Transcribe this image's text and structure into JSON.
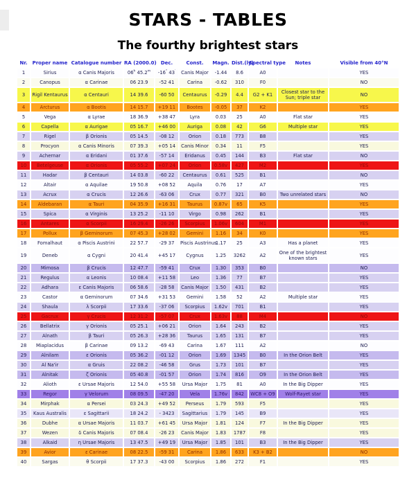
{
  "title": "STARS - TABLES",
  "subtitle": "The fourthy brightest stars",
  "palette": {
    "header_text": "#2626cc",
    "text": "#1b1b4d",
    "text_red": "#8b0a0a",
    "text_orange": "#8b2a00",
    "text_purple": "#2d1566",
    "row_white": "#fdfdff",
    "row_lavender": "#d7d1f1",
    "row_lavender_deep": "#c5baee",
    "row_lavender_light": "#e9e6f8",
    "row_cream": "#f9f9de",
    "row_cream_pale": "#fbfbee",
    "row_yellow": "#f7f74b",
    "row_orange": "#ffa41f",
    "row_red": "#ee1515",
    "row_purple": "#a080e8"
  },
  "table": {
    "columns": [
      "Nr.",
      "Proper name",
      "Catalogue number",
      "RA (2000.0)",
      "Dec.",
      "Const.",
      "Magn.",
      "Dist.(ly)",
      "Spectral type",
      "Notes",
      "Visible from 40°N"
    ],
    "rows": [
      {
        "nr": "1",
        "name": "Sirius",
        "cat": "α Canis Majoris",
        "ra": "06 45.2",
        "ra_sup": [
          "h",
          "m"
        ],
        "dec": "-16 43",
        "dec_sup": [
          "°",
          "′"
        ],
        "const": "Canis Major",
        "magn": "-1.44",
        "dist": "8.6",
        "spec": "A0",
        "notes": "",
        "visible": "YES",
        "bg": "row_white",
        "fg": "text"
      },
      {
        "nr": "2",
        "name": "Canopus",
        "cat": "α Carinae",
        "ra": "06 23.9",
        "dec": "-52 41",
        "const": "Carina",
        "magn": "-0.62",
        "dist": "310",
        "spec": "F0",
        "notes": "",
        "visible": "NO",
        "bg": "row_cream_pale",
        "fg": "text"
      },
      {
        "nr": "3",
        "name": "Rigil Kentaurus",
        "cat": "α Centauri",
        "ra": "14 39.6",
        "dec": "-60 50",
        "const": "Centaurus",
        "magn": "-0.29",
        "dist": "4.4",
        "spec": "G2 + K1",
        "notes": "Closest star to the Sun; triple star",
        "visible": "NO",
        "bg": "row_yellow",
        "fg": "text"
      },
      {
        "nr": "4",
        "name": "Arcturus",
        "cat": "α Bootis",
        "ra": "14 15.7",
        "dec": "+19 11",
        "const": "Bootes",
        "magn": "-0.05",
        "dist": "37",
        "spec": "K2",
        "notes": "",
        "visible": "YES",
        "bg": "row_orange",
        "fg": "text_orange"
      },
      {
        "nr": "5",
        "name": "Vega",
        "cat": "α Lyrae",
        "ra": "18 36.9",
        "dec": "+38 47",
        "const": "Lyra",
        "magn": "0.03",
        "dist": "25",
        "spec": "A0",
        "notes": "Flat star",
        "visible": "YES",
        "bg": "row_white",
        "fg": "text"
      },
      {
        "nr": "6",
        "name": "Capella",
        "cat": "α Aurigae",
        "ra": "05 16.7",
        "dec": "+46 00",
        "const": "Auriga",
        "magn": "0.08",
        "dist": "42",
        "spec": "G6",
        "notes": "Multiple star",
        "visible": "YES",
        "bg": "row_yellow",
        "fg": "text"
      },
      {
        "nr": "7",
        "name": "Rigel",
        "cat": "β Orionis",
        "ra": "05 14.5",
        "dec": "-08 12",
        "const": "Orion",
        "magn": "0.18",
        "dist": "773",
        "spec": "B8",
        "notes": "",
        "visible": "YES",
        "bg": "row_lavender",
        "fg": "text"
      },
      {
        "nr": "8",
        "name": "Procyon",
        "cat": "α Canis Minoris",
        "ra": "07 39.3",
        "dec": "+05 14",
        "const": "Canis Minor",
        "magn": "0.34",
        "dist": "11",
        "spec": "F5",
        "notes": "",
        "visible": "YES",
        "bg": "row_cream",
        "fg": "text"
      },
      {
        "nr": "9",
        "name": "Achernar",
        "cat": "α Eridani",
        "ra": "01 37.6",
        "dec": "-57 14",
        "const": "Eridanus",
        "magn": "0.45",
        "dist": "144",
        "spec": "B3",
        "notes": "Flat star",
        "visible": "NO",
        "bg": "row_lavender",
        "fg": "text"
      },
      {
        "nr": "10",
        "name": "Betelgeuse",
        "cat": "α Orionis",
        "ra": "05 55.2",
        "dec": "+07 24",
        "const": "Orion",
        "magn": "0.58v",
        "dist": "427",
        "spec": "M2",
        "notes": "",
        "visible": "YES",
        "bg": "row_red",
        "fg": "text_red"
      },
      {
        "nr": "11",
        "name": "Hadar",
        "cat": "β Centauri",
        "ra": "14 03.8",
        "dec": "-60 22",
        "const": "Centaurus",
        "magn": "0.61",
        "dist": "525",
        "spec": "B1",
        "notes": "",
        "visible": "NO",
        "bg": "row_lavender",
        "fg": "text"
      },
      {
        "nr": "12",
        "name": "Altair",
        "cat": "α Aquilae",
        "ra": "19 50.8",
        "dec": "+08 52",
        "const": "Aquila",
        "magn": "0.76",
        "dist": "17",
        "spec": "A7",
        "notes": "",
        "visible": "YES",
        "bg": "row_white",
        "fg": "text"
      },
      {
        "nr": "13",
        "name": "Acrux",
        "cat": "α Crucis",
        "ra": "12 26.6",
        "dec": "-63 06",
        "const": "Crux",
        "magn": "0.77",
        "dist": "321",
        "spec": "B0",
        "notes": "Two unrelated stars",
        "visible": "NO",
        "bg": "row_lavender",
        "fg": "text"
      },
      {
        "nr": "14",
        "name": "Aldebaran",
        "cat": "α Tauri",
        "ra": "04 35.9",
        "dec": "+16 31",
        "const": "Taurus",
        "magn": "0.87v",
        "dist": "65",
        "spec": "K5",
        "notes": "",
        "visible": "YES",
        "bg": "row_orange",
        "fg": "text_orange"
      },
      {
        "nr": "15",
        "name": "Spica",
        "cat": "α Virginis",
        "ra": "13 25.2",
        "dec": "-11 10",
        "const": "Virgo",
        "magn": "0.98",
        "dist": "262",
        "spec": "B1",
        "notes": "",
        "visible": "YES",
        "bg": "row_lavender",
        "fg": "text"
      },
      {
        "nr": "16",
        "name": "Antares",
        "cat": "α Scorpii",
        "ra": "16 29.4",
        "dec": "-26 26",
        "const": "Scorpius",
        "magn": "1.06v",
        "dist": "604",
        "spec": "M1",
        "notes": "",
        "visible": "YES",
        "bg": "row_red",
        "fg": "text_red"
      },
      {
        "nr": "17",
        "name": "Pollux",
        "cat": "β Geminorum",
        "ra": "07 45.3",
        "dec": "+28 02",
        "const": "Gemini",
        "magn": "1.16",
        "dist": "34",
        "spec": "K0",
        "notes": "",
        "visible": "YES",
        "bg": "row_orange",
        "fg": "text_orange"
      },
      {
        "nr": "18",
        "name": "Fomalhaut",
        "cat": "α Piscis Austrini",
        "ra": "22 57.7",
        "dec": "-29 37",
        "const": "Piscis Austrinus",
        "magn": "1.17",
        "dist": "25",
        "spec": "A3",
        "notes": "Has a planet",
        "visible": "YES",
        "bg": "row_white",
        "fg": "text"
      },
      {
        "nr": "19",
        "name": "Deneb",
        "cat": "α Cygni",
        "ra": "20 41.4",
        "dec": "+45 17",
        "const": "Cygnus",
        "magn": "1.25",
        "dist": "3262",
        "spec": "A2",
        "notes": "One of the brightest known stars",
        "visible": "YES",
        "bg": "row_white",
        "fg": "text"
      },
      {
        "nr": "20",
        "name": "Mimosa",
        "cat": "β Crucis",
        "ra": "12 47.7",
        "dec": "-59 41",
        "const": "Crux",
        "magn": "1.30",
        "dist": "353",
        "spec": "B0",
        "notes": "",
        "visible": "NO",
        "bg": "row_lavender_deep",
        "fg": "text"
      },
      {
        "nr": "21",
        "name": "Regulus",
        "cat": "α Leonis",
        "ra": "10 08.4",
        "dec": "+11 58",
        "const": "Leo",
        "magn": "1.36",
        "dist": "77",
        "spec": "B7",
        "notes": "",
        "visible": "YES",
        "bg": "row_lavender",
        "fg": "text"
      },
      {
        "nr": "22",
        "name": "Adhara",
        "cat": "ε Canis Majoris",
        "ra": "06 58.6",
        "dec": "-28 58",
        "const": "Canis Major",
        "magn": "1.50",
        "dist": "431",
        "spec": "B2",
        "notes": "",
        "visible": "YES",
        "bg": "row_lavender",
        "fg": "text"
      },
      {
        "nr": "23",
        "name": "Castor",
        "cat": "α Geminorum",
        "ra": "07 34.6",
        "dec": "+31 53",
        "const": "Gemini",
        "magn": "1.58",
        "dist": "52",
        "spec": "A2",
        "notes": "Multiple star",
        "visible": "YES",
        "bg": "row_white",
        "fg": "text"
      },
      {
        "nr": "24",
        "name": "Shaula",
        "cat": "λ Scorpii",
        "ra": "17 33.6",
        "dec": "-37 06",
        "const": "Scorpius",
        "magn": "1.62v",
        "dist": "701",
        "spec": "B1",
        "notes": "",
        "visible": "YES",
        "bg": "row_lavender",
        "fg": "text"
      },
      {
        "nr": "25",
        "name": "Gacrux",
        "cat": "γ Crucis",
        "ra": "12 31.2",
        "dec": "-57 07",
        "const": "Crux",
        "magn": "1.63v",
        "dist": "88",
        "spec": "M4",
        "notes": "",
        "visible": "NO",
        "bg": "row_red",
        "fg": "text_red"
      },
      {
        "nr": "26",
        "name": "Bellatrix",
        "cat": "γ Orionis",
        "ra": "05 25.1",
        "dec": "+06 21",
        "const": "Orion",
        "magn": "1.64",
        "dist": "243",
        "spec": "B2",
        "notes": "",
        "visible": "YES",
        "bg": "row_lavender",
        "fg": "text"
      },
      {
        "nr": "27",
        "name": "Alnath",
        "cat": "β Tauri",
        "ra": "05 26.3",
        "dec": "+28 36",
        "const": "Taurus",
        "magn": "1.65",
        "dist": "131",
        "spec": "B7",
        "notes": "",
        "visible": "YES",
        "bg": "row_lavender",
        "fg": "text"
      },
      {
        "nr": "28",
        "name": "Miaplacidus",
        "cat": "β Carinae",
        "ra": "09 13.2",
        "dec": "-69 43",
        "const": "Carina",
        "magn": "1.67",
        "dist": "111",
        "spec": "A2",
        "notes": "",
        "visible": "NO",
        "bg": "row_white",
        "fg": "text"
      },
      {
        "nr": "29",
        "name": "Alnilam",
        "cat": "ε Orionis",
        "ra": "05 36.2",
        "dec": "-01 12",
        "const": "Orion",
        "magn": "1.69",
        "dist": "1345",
        "spec": "B0",
        "notes": "In the Orion Belt",
        "visible": "YES",
        "bg": "row_lavender_deep",
        "fg": "text"
      },
      {
        "nr": "30",
        "name": "Al Na'ir",
        "cat": "α Gruis",
        "ra": "22 08.2",
        "dec": "-46 58",
        "const": "Grus",
        "magn": "1.73",
        "dist": "101",
        "spec": "B7",
        "notes": "",
        "visible": "YES",
        "bg": "row_lavender",
        "fg": "text"
      },
      {
        "nr": "31",
        "name": "Alnitak",
        "cat": "ζ Orionis",
        "ra": "05 40.8",
        "dec": "-01 57",
        "const": "Orion",
        "magn": "1.74",
        "dist": "816",
        "spec": "O9",
        "notes": "In the Orion Belt",
        "visible": "YES",
        "bg": "row_lavender_deep",
        "fg": "text"
      },
      {
        "nr": "32",
        "name": "Alioth",
        "cat": "ε Ursae Majoris",
        "ra": "12 54.0",
        "dec": "+55 58",
        "const": "Ursa Major",
        "magn": "1.75",
        "dist": "81",
        "spec": "A0",
        "notes": "In the Big Dipper",
        "visible": "YES",
        "bg": "row_white",
        "fg": "text"
      },
      {
        "nr": "33",
        "name": "Regor",
        "cat": "γ Velorum",
        "ra": "08 09.5",
        "dec": "-47 20",
        "const": "Vela",
        "magn": "1.76v",
        "dist": "842",
        "spec": "WC8 + O9",
        "notes": "Wolf-Rayet star",
        "visible": "YES",
        "bg": "row_purple",
        "fg": "text_purple"
      },
      {
        "nr": "34",
        "name": "Mirphak",
        "cat": "α Persei",
        "ra": "03 24.3",
        "dec": "+49 52",
        "const": "Perseus",
        "magn": "1.79",
        "dist": "593",
        "spec": "F5",
        "notes": "",
        "visible": "YES",
        "bg": "row_cream",
        "fg": "text"
      },
      {
        "nr": "35",
        "name": "Kaus Australis",
        "cat": "ε Sagittarii",
        "ra": "18 24.2",
        "dec": "- 3423",
        "const": "Sagittarius",
        "magn": "1.79",
        "dist": "145",
        "spec": "B9",
        "notes": "",
        "visible": "YES",
        "bg": "row_lavender_light",
        "fg": "text"
      },
      {
        "nr": "36",
        "name": "Dubhe",
        "cat": "α Ursae Majoris",
        "ra": "11 03.7",
        "dec": "+61 45",
        "const": "Ursa Major",
        "magn": "1.81",
        "dist": "124",
        "spec": "F7",
        "notes": "In the Big Dipper",
        "visible": "YES",
        "bg": "row_cream",
        "fg": "text"
      },
      {
        "nr": "37",
        "name": "Wezen",
        "cat": "δ Canis Majoris",
        "ra": "07 08.4",
        "dec": "-26 23",
        "const": "Canis Major",
        "magn": "1.83",
        "dist": "1787",
        "spec": "F8",
        "notes": "",
        "visible": "YES",
        "bg": "row_cream",
        "fg": "text"
      },
      {
        "nr": "38",
        "name": "Alkaid",
        "cat": "η Ursae Majoris",
        "ra": "13 47.5",
        "dec": "+49 19",
        "const": "Ursa Major",
        "magn": "1.85",
        "dist": "101",
        "spec": "B3",
        "notes": "In the Big Dipper",
        "visible": "YES",
        "bg": "row_lavender",
        "fg": "text"
      },
      {
        "nr": "39",
        "name": "Avior",
        "cat": "ε Carinae",
        "ra": "08 22.5",
        "dec": "-59 31",
        "const": "Carina",
        "magn": "1.86",
        "dist": "633",
        "spec": "K3 + B2",
        "notes": "",
        "visible": "NO",
        "bg": "row_orange",
        "fg": "text_orange"
      },
      {
        "nr": "40",
        "name": "Sargas",
        "cat": "θ Scorpii",
        "ra": "17 37.3",
        "dec": "-43 00",
        "const": "Scorpius",
        "magn": "1.86",
        "dist": "272",
        "spec": "F1",
        "notes": "",
        "visible": "YES",
        "bg": "row_cream_pale",
        "fg": "text"
      }
    ]
  }
}
